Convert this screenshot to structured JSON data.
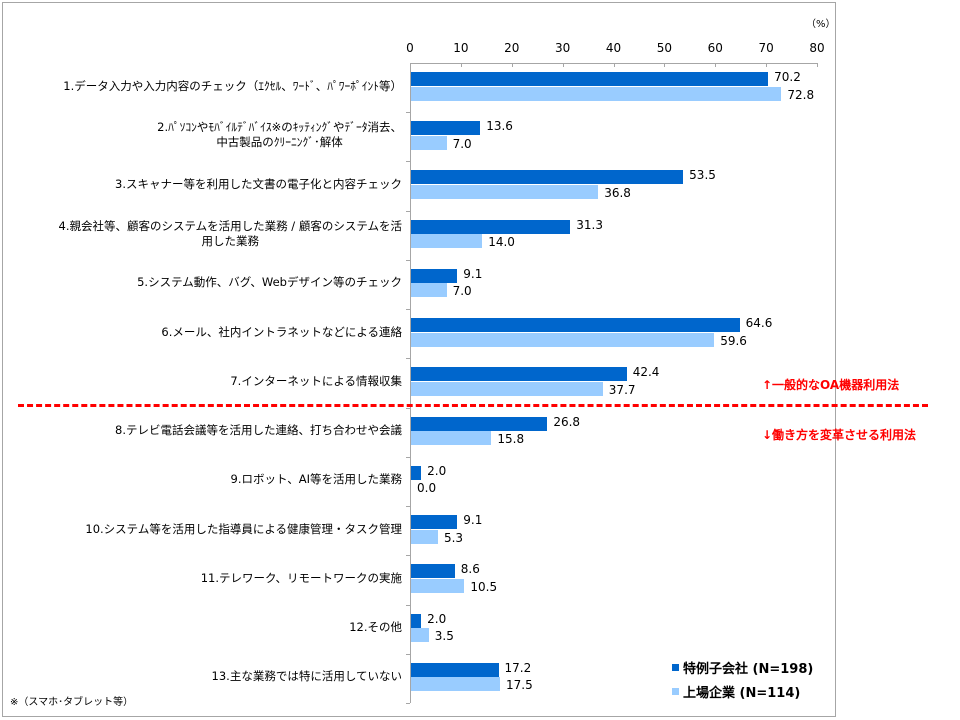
{
  "chart_data": {
    "type": "bar",
    "orientation": "horizontal",
    "title": "",
    "xlabel": "",
    "ylabel": "",
    "unit": "(%)",
    "xlim": [
      0,
      80
    ],
    "xticks": [
      0,
      10,
      20,
      30,
      40,
      50,
      60,
      70,
      80
    ],
    "grid": false,
    "legend_position": "bottom-right",
    "categories": [
      "1.データ入力や入力内容のチェック（ｴｸｾﾙ、ﾜｰﾄﾞ、ﾊﾟﾜｰﾎﾟｲﾝﾄ等）",
      "2.ﾊﾟｿｺﾝやﾓﾊﾞｲﾙﾃﾞﾊﾞｲｽ※のｷｯﾃｨﾝｸﾞやﾃﾞｰﾀ消去、中古製品のｸﾘｰﾆﾝｸﾞ･解体",
      "3.スキャナー等を利用した文書の電子化と内容チェック",
      "4.親会社等、顧客のシステムを活用した業務 / 顧客のシステムを活用した業務",
      "5.システム動作、バグ、Webデザイン等のチェック",
      "6.メール、社内イントラネットなどによる連絡",
      "7.インターネットによる情報収集",
      "8.テレビ電話会議等を活用した連絡、打ち合わせや会議",
      "9.ロボット、AI等を活用した業務",
      "10.システム等を活用した指導員による健康管理・タスク管理",
      "11.テレワーク、リモートワークの実施",
      "12.その他",
      "13.主な業務では特に活用していない"
    ],
    "series": [
      {
        "name": "特例子会社 (N=198)",
        "color": "#0066cc",
        "values": [
          70.2,
          13.6,
          53.5,
          31.3,
          9.1,
          64.6,
          42.4,
          26.8,
          2.0,
          9.1,
          8.6,
          2.0,
          17.2
        ]
      },
      {
        "name": "上場企業 (N=114)",
        "color": "#99ccff",
        "values": [
          72.8,
          7.0,
          36.8,
          14.0,
          7.0,
          59.6,
          37.7,
          15.8,
          0.0,
          5.3,
          10.5,
          3.5,
          17.5
        ]
      }
    ],
    "annotations": [
      {
        "text": "↑一般的なOA機器利用法",
        "color": "#ff0000"
      },
      {
        "text": "↓働き方を変革させる利用法",
        "color": "#ff0000"
      }
    ],
    "divider_after_category": 7
  },
  "labels": {
    "unit": "（%）",
    "ticks": [
      "0",
      "10",
      "20",
      "30",
      "40",
      "50",
      "60",
      "70",
      "80"
    ],
    "categories": [
      [
        "1.データ入力や入力内容のチェック（ｴｸｾﾙ、ﾜｰﾄﾞ、ﾊﾟﾜｰﾎﾟｲﾝﾄ等）"
      ],
      [
        "2.ﾊﾟｿｺﾝやﾓﾊﾞｲﾙﾃﾞﾊﾞｲｽ※のｷｯﾃｨﾝｸﾞやﾃﾞｰﾀ消去、",
        "中古製品のｸﾘｰﾆﾝｸﾞ･解体"
      ],
      [
        "3.スキャナー等を利用した文書の電子化と内容チェック"
      ],
      [
        "4.親会社等、顧客のシステムを活用した業務 / 顧客のシステムを活",
        "用した業務"
      ],
      [
        "5.システム動作、バグ、Webデザイン等のチェック"
      ],
      [
        "6.メール、社内イントラネットなどによる連絡"
      ],
      [
        "7.インターネットによる情報収集"
      ],
      [
        "8.テレビ電話会議等を活用した連絡、打ち合わせや会議"
      ],
      [
        "9.ロボット、AI等を活用した業務"
      ],
      [
        "10.システム等を活用した指導員による健康管理・タスク管理"
      ],
      [
        "11.テレワーク、リモートワークの実施"
      ],
      [
        "12.その他"
      ],
      [
        "13.主な業務では特に活用していない"
      ]
    ],
    "s1_values": [
      "70.2",
      "13.6",
      "53.5",
      "31.3",
      "9.1",
      "64.6",
      "42.4",
      "26.8",
      "2.0",
      "9.1",
      "8.6",
      "2.0",
      "17.2"
    ],
    "s2_values": [
      "72.8",
      "7.0",
      "36.8",
      "14.0",
      "7.0",
      "59.6",
      "37.7",
      "15.8",
      "0.0",
      "5.3",
      "10.5",
      "3.5",
      "17.5"
    ],
    "note_upper": "↑一般的なOA機器利用法",
    "note_lower": "↓働き方を変革させる利用法",
    "legend": [
      "特例子会社 (N=198)",
      "上場企業 (N=114)"
    ],
    "footnote": "※（スマホ･タブレット等）"
  }
}
